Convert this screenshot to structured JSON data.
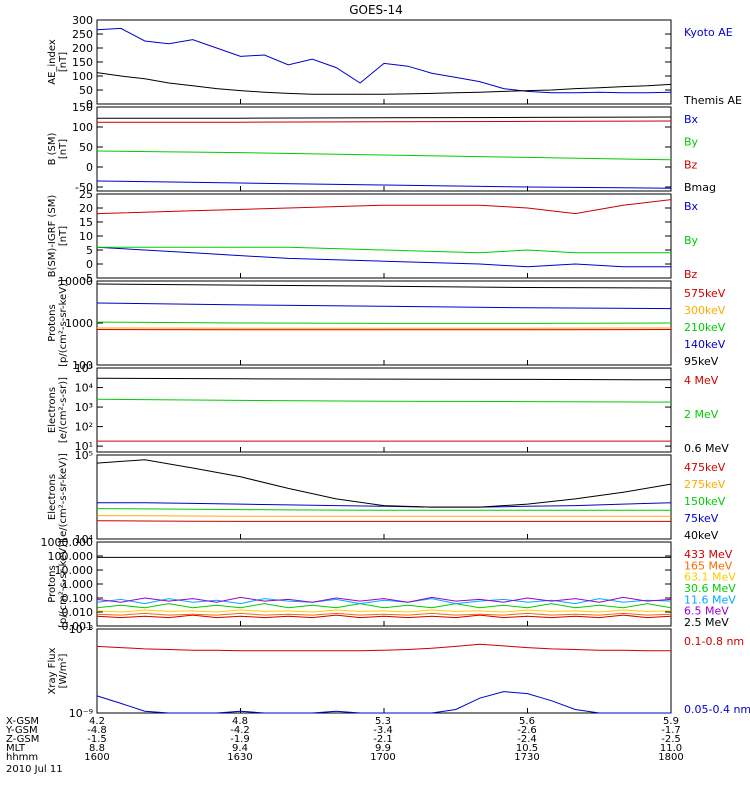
{
  "title": "GOES-14",
  "footer": {
    "row_labels": [
      "X-GSM",
      "Y-GSM",
      "Z-GSM",
      "MLT",
      "hhmm"
    ],
    "columns": [
      [
        "4.2",
        "-4.8",
        "-1.5",
        "8.8",
        "1600"
      ],
      [
        "4.8",
        "-4.2",
        "-1.9",
        "9.4",
        "1630"
      ],
      [
        "5.3",
        "-3.4",
        "-2.1",
        "9.9",
        "1700"
      ],
      [
        "5.6",
        "-2.6",
        "-2.4",
        "10.5",
        "1730"
      ],
      [
        "5.9",
        "-1.7",
        "-2.5",
        "11.0",
        "1800"
      ]
    ],
    "date": "2010 Jul 11"
  },
  "chart_data": [
    {
      "type": "line",
      "ylabel": "AE_index\n[nT]",
      "scale": "linear",
      "ylim": [
        0,
        300
      ],
      "yticks": [
        0,
        50,
        100,
        150,
        200,
        250,
        300
      ],
      "yticklabels": [
        "0",
        "50",
        "100",
        "150",
        "200",
        "250",
        "300"
      ],
      "x": [
        0,
        5,
        10,
        15,
        20,
        25,
        30,
        35,
        40,
        45,
        50,
        55,
        60,
        65,
        70,
        75,
        80,
        85,
        90,
        95,
        100,
        105,
        110,
        115,
        120
      ],
      "series": [
        {
          "name": "Kyoto AE",
          "color": "#0000cc",
          "values": [
            265,
            270,
            225,
            215,
            230,
            200,
            170,
            175,
            140,
            160,
            130,
            75,
            145,
            135,
            110,
            95,
            80,
            55,
            45,
            40,
            40,
            42,
            40,
            40,
            42
          ]
        },
        {
          "name": "Themis AE",
          "color": "#000000",
          "values": [
            112,
            100,
            90,
            75,
            65,
            55,
            48,
            42,
            38,
            35,
            35,
            35,
            35,
            36,
            38,
            40,
            42,
            45,
            48,
            50,
            55,
            58,
            62,
            65,
            70
          ]
        }
      ]
    },
    {
      "type": "line",
      "ylabel": "B (SM)\n[nT]",
      "scale": "linear",
      "ylim": [
        -60,
        150
      ],
      "yticks": [
        -50,
        0,
        50,
        100,
        150
      ],
      "yticklabels": [
        "-50",
        "0",
        "50",
        "100",
        "150"
      ],
      "x": [
        0,
        30,
        60,
        90,
        120
      ],
      "series": [
        {
          "name": "Bx",
          "color": "#0000cc",
          "values": [
            -35,
            -40,
            -45,
            -50,
            -53
          ]
        },
        {
          "name": "By",
          "color": "#00cc00",
          "values": [
            40,
            36,
            30,
            24,
            18
          ]
        },
        {
          "name": "Bz",
          "color": "#cc0000",
          "values": [
            112,
            112,
            113,
            114,
            115
          ]
        },
        {
          "name": "Bmag",
          "color": "#000000",
          "values": [
            122,
            122,
            123,
            124,
            125
          ]
        }
      ]
    },
    {
      "type": "line",
      "ylabel": "B(SM)-IGRF (SM)\n[nT]",
      "scale": "linear",
      "ylim": [
        -5,
        25
      ],
      "yticks": [
        -5,
        0,
        5,
        10,
        15,
        20,
        25
      ],
      "yticklabels": [
        "-5",
        "0",
        "5",
        "10",
        "15",
        "20",
        "25"
      ],
      "x": [
        0,
        20,
        40,
        60,
        80,
        90,
        100,
        110,
        120
      ],
      "series": [
        {
          "name": "Bx",
          "color": "#0000cc",
          "values": [
            6,
            4,
            2,
            1,
            0,
            -1,
            0,
            -1,
            -1
          ]
        },
        {
          "name": "By",
          "color": "#00cc00",
          "values": [
            6,
            6,
            6,
            5,
            4,
            5,
            4,
            4,
            4
          ]
        },
        {
          "name": "Bz",
          "color": "#cc0000",
          "values": [
            18,
            19,
            20,
            21,
            21,
            20,
            18,
            21,
            23
          ]
        }
      ]
    },
    {
      "type": "line",
      "ylabel": "Protons\n[p/(cm²-s-sr-keV)]",
      "scale": "log",
      "ylim": [
        100,
        10000
      ],
      "yticks": [
        100,
        1000,
        10000
      ],
      "yticklabels": [
        "100",
        "1000",
        "10000"
      ],
      "x": [
        0,
        30,
        60,
        90,
        120
      ],
      "series": [
        {
          "name": "575keV",
          "color": "#cc0000",
          "values": [
            700,
            690,
            690,
            690,
            700
          ]
        },
        {
          "name": "300keV",
          "color": "#ffaa00",
          "values": [
            760,
            750,
            750,
            750,
            760
          ]
        },
        {
          "name": "210keV",
          "color": "#00cc00",
          "values": [
            1050,
            1000,
            980,
            980,
            1000
          ]
        },
        {
          "name": "140keV",
          "color": "#0000cc",
          "values": [
            3000,
            2700,
            2500,
            2300,
            2200
          ]
        },
        {
          "name": "95keV",
          "color": "#000000",
          "values": [
            8500,
            8000,
            7500,
            7000,
            6800
          ]
        }
      ]
    },
    {
      "type": "line",
      "ylabel": "Electrons\n[e/(cm²-s-sr)]",
      "scale": "log",
      "ylim": [
        5,
        100000
      ],
      "yticks": [
        10,
        100,
        1000,
        10000,
        100000
      ],
      "yticklabels": [
        "10¹",
        "10²",
        "10³",
        "10⁴",
        "10⁵"
      ],
      "x": [
        0,
        30,
        60,
        90,
        120
      ],
      "series": [
        {
          "name": "4 MeV",
          "color": "#cc0000",
          "values": [
            18,
            18,
            18,
            18,
            18
          ]
        },
        {
          "name": "2 MeV",
          "color": "#00cc00",
          "values": [
            2500,
            2200,
            2000,
            1900,
            1800
          ]
        },
        {
          "name": "0.6 MeV",
          "color": "#000000",
          "values": [
            30000,
            28000,
            27000,
            26000,
            25000
          ]
        }
      ]
    },
    {
      "type": "line",
      "ylabel": "Electrons\n[e/(cm²-s-sr-keV)]",
      "scale": "log",
      "ylim": [
        10000,
        100000
      ],
      "yticks": [
        10000,
        100000
      ],
      "yticklabels": [
        "10⁴",
        "10⁵"
      ],
      "x": [
        0,
        10,
        20,
        30,
        40,
        50,
        60,
        70,
        80,
        90,
        100,
        110,
        120
      ],
      "series": [
        {
          "name": "475keV",
          "color": "#cc0000",
          "values": [
            16500,
            16400,
            16300,
            16200,
            16200,
            16200,
            16200,
            16200,
            16200,
            16200,
            16200,
            16200,
            16200
          ]
        },
        {
          "name": "275keV",
          "color": "#ffaa00",
          "values": [
            19000,
            18900,
            18800,
            18700,
            18700,
            18700,
            18700,
            18700,
            18700,
            18700,
            18700,
            18700,
            18700
          ]
        },
        {
          "name": "150keV",
          "color": "#00cc00",
          "values": [
            23000,
            22800,
            22600,
            22400,
            22200,
            22100,
            22000,
            22000,
            22000,
            22000,
            22000,
            22000,
            22000
          ]
        },
        {
          "name": "75keV",
          "color": "#0000cc",
          "values": [
            27000,
            27000,
            26500,
            26000,
            25500,
            25000,
            24500,
            24000,
            24000,
            24500,
            25000,
            26000,
            27000
          ]
        },
        {
          "name": "40keV",
          "color": "#000000",
          "values": [
            80000,
            88000,
            70000,
            55000,
            40000,
            30000,
            25000,
            24000,
            24000,
            26000,
            30000,
            36000,
            45000
          ]
        }
      ]
    },
    {
      "type": "line",
      "ylabel": "Protons\n[p/(cm²-s-sr-keV)]",
      "scale": "log",
      "ylim": [
        0.001,
        1000
      ],
      "yticks": [
        0.001,
        0.01,
        0.1,
        1,
        10,
        100,
        1000
      ],
      "yticklabels": [
        "0.001",
        "0.010",
        "0.100",
        "1.000",
        "10.000",
        "100.000",
        "1000.000"
      ],
      "x": [
        0,
        5,
        10,
        15,
        20,
        25,
        30,
        35,
        40,
        45,
        50,
        55,
        60,
        65,
        70,
        75,
        80,
        85,
        90,
        95,
        100,
        105,
        110,
        115,
        120
      ],
      "series": [
        {
          "name": "433 MeV",
          "color": "#cc0000",
          "values": [
            0.005,
            0.004,
            0.005,
            0.004,
            0.006,
            0.004,
            0.005,
            0.004,
            0.005,
            0.004,
            0.006,
            0.004,
            0.005,
            0.004,
            0.005,
            0.004,
            0.006,
            0.004,
            0.005,
            0.004,
            0.005,
            0.004,
            0.006,
            0.004,
            0.005
          ]
        },
        {
          "name": "165 MeV",
          "color": "#ff6600",
          "values": [
            0.007,
            0.006,
            0.008,
            0.006,
            0.007,
            0.006,
            0.008,
            0.006,
            0.007,
            0.006,
            0.008,
            0.006,
            0.007,
            0.006,
            0.008,
            0.006,
            0.007,
            0.006,
            0.008,
            0.006,
            0.007,
            0.006,
            0.008,
            0.006,
            0.007
          ]
        },
        {
          "name": "63.1 MeV",
          "color": "#ffcc00",
          "values": [
            0.012,
            0.01,
            0.014,
            0.011,
            0.012,
            0.01,
            0.014,
            0.011,
            0.012,
            0.01,
            0.014,
            0.011,
            0.012,
            0.01,
            0.014,
            0.011,
            0.012,
            0.01,
            0.014,
            0.011,
            0.012,
            0.01,
            0.014,
            0.011,
            0.012
          ]
        },
        {
          "name": "30.6 MeV",
          "color": "#00cc00",
          "values": [
            0.02,
            0.03,
            0.02,
            0.04,
            0.02,
            0.03,
            0.02,
            0.04,
            0.02,
            0.03,
            0.02,
            0.04,
            0.02,
            0.03,
            0.02,
            0.04,
            0.02,
            0.03,
            0.02,
            0.04,
            0.02,
            0.03,
            0.02,
            0.04,
            0.02
          ]
        },
        {
          "name": "11.6 MeV",
          "color": "#00aaff",
          "values": [
            0.05,
            0.08,
            0.04,
            0.09,
            0.05,
            0.07,
            0.04,
            0.09,
            0.06,
            0.05,
            0.08,
            0.04,
            0.07,
            0.05,
            0.09,
            0.04,
            0.06,
            0.08,
            0.05,
            0.07,
            0.04,
            0.09,
            0.05,
            0.07,
            0.06
          ]
        },
        {
          "name": "6.5 MeV",
          "color": "#9900cc",
          "values": [
            0.08,
            0.05,
            0.1,
            0.06,
            0.09,
            0.05,
            0.11,
            0.06,
            0.08,
            0.05,
            0.1,
            0.06,
            0.09,
            0.05,
            0.11,
            0.06,
            0.08,
            0.05,
            0.1,
            0.06,
            0.09,
            0.05,
            0.11,
            0.06,
            0.08
          ]
        },
        {
          "name": "2.5 MeV",
          "color": "#000000",
          "values": [
            80,
            80,
            80,
            80,
            80,
            80,
            80,
            80,
            80,
            80,
            80,
            80,
            80,
            80,
            80,
            80,
            80,
            80,
            80,
            80,
            80,
            80,
            80,
            80,
            80
          ]
        }
      ]
    },
    {
      "type": "line",
      "ylabel": "Xray Flux\n[W/m²]",
      "scale": "log",
      "ylim": [
        1e-09,
        1e-08
      ],
      "yticks": [
        1e-09,
        1e-08
      ],
      "yticklabels": [
        "10⁻⁹",
        "10⁻⁸"
      ],
      "x": [
        0,
        5,
        10,
        15,
        20,
        25,
        30,
        35,
        40,
        45,
        50,
        55,
        60,
        65,
        70,
        75,
        80,
        85,
        90,
        95,
        100,
        105,
        110,
        115,
        120
      ],
      "series": [
        {
          "name": "0.1-0.8 nm",
          "color": "#cc0000",
          "values": [
            6.2e-09,
            6e-09,
            5.8e-09,
            5.7e-09,
            5.6e-09,
            5.6e-09,
            5.5e-09,
            5.5e-09,
            5.5e-09,
            5.5e-09,
            5.5e-09,
            5.5e-09,
            5.6e-09,
            5.7e-09,
            5.9e-09,
            6.2e-09,
            6.6e-09,
            6.3e-09,
            6e-09,
            5.8e-09,
            5.7e-09,
            5.6e-09,
            5.6e-09,
            5.5e-09,
            5.5e-09
          ]
        },
        {
          "name": "0.05-0.4 nm",
          "color": "#0000cc",
          "values": [
            1.6e-09,
            1.3e-09,
            1.05e-09,
            1e-09,
            1e-09,
            1e-09,
            1.05e-09,
            1e-09,
            1e-09,
            1e-09,
            1.05e-09,
            1e-09,
            1e-09,
            1e-09,
            1e-09,
            1.1e-09,
            1.5e-09,
            1.8e-09,
            1.7e-09,
            1.4e-09,
            1.1e-09,
            1e-09,
            1e-09,
            1e-09,
            1e-09
          ]
        }
      ]
    }
  ]
}
